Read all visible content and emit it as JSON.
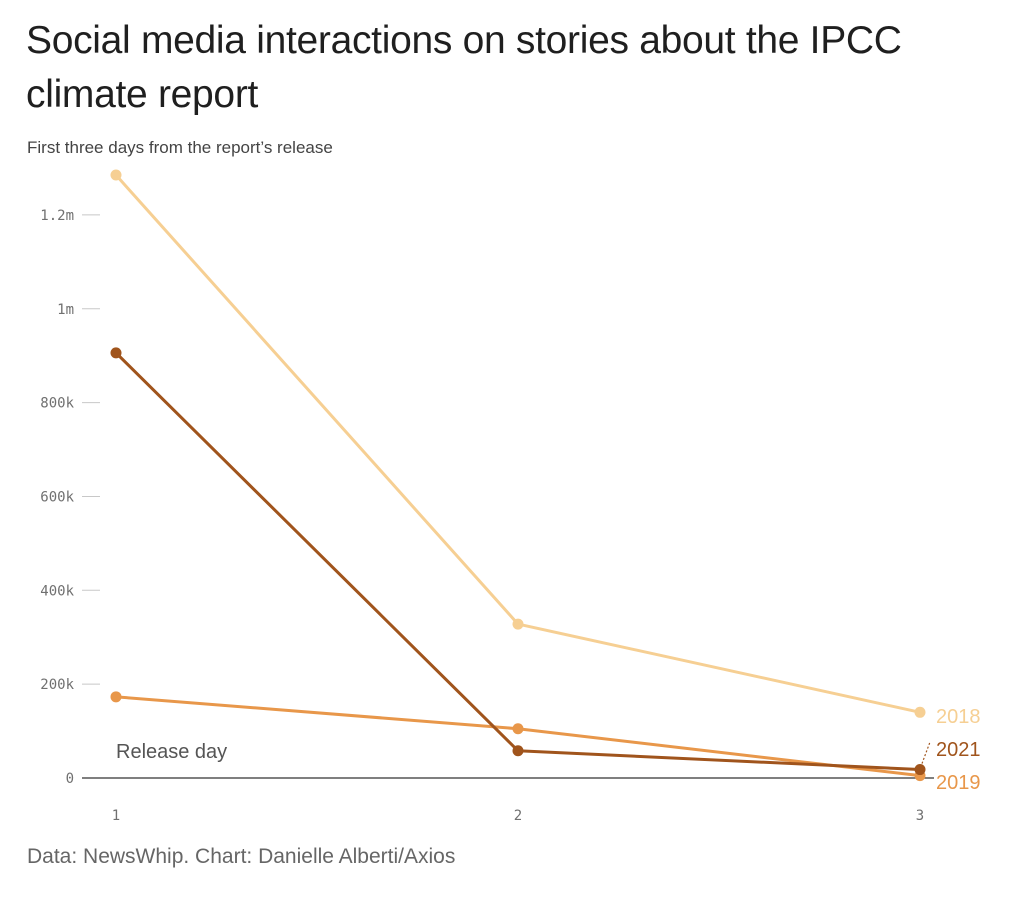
{
  "title": "Social media interactions on stories about the IPCC climate report",
  "subtitle": "First three days from the report’s release",
  "source": "Data: NewsWhip. Chart: Danielle Alberti/Axios",
  "chart_data": {
    "type": "line",
    "x": [
      1,
      2,
      3
    ],
    "xlim": [
      1,
      3
    ],
    "ylim": [
      0,
      1300000
    ],
    "x_tick_labels": [
      "1",
      "2",
      "3"
    ],
    "y_ticks": [
      {
        "value": 0,
        "label": "0"
      },
      {
        "value": 200000,
        "label": "200k"
      },
      {
        "value": 400000,
        "label": "400k"
      },
      {
        "value": 600000,
        "label": "600k"
      },
      {
        "value": 800000,
        "label": "800k"
      },
      {
        "value": 1000000,
        "label": "1m"
      },
      {
        "value": 1200000,
        "label": "1.2m"
      }
    ],
    "annotation": "Release day",
    "grid": false,
    "series": [
      {
        "name": "2018",
        "color": "#f6cf93",
        "values": [
          1285000,
          328000,
          140000
        ]
      },
      {
        "name": "2019",
        "color": "#e8974a",
        "values": [
          173000,
          105000,
          5000
        ]
      },
      {
        "name": "2021",
        "color": "#a0541c",
        "values": [
          906000,
          58000,
          18000
        ]
      }
    ]
  }
}
